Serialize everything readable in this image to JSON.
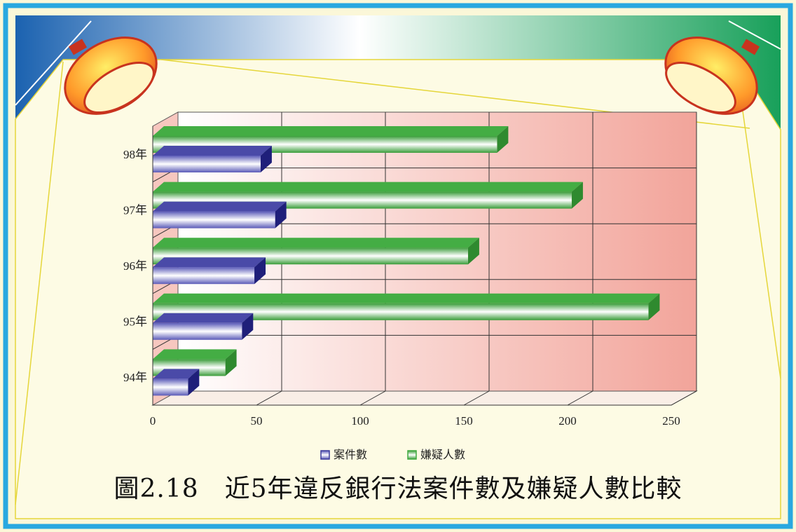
{
  "caption": "圖2.18　近5年違反銀行法案件數及嫌疑人數比較",
  "chart_data": {
    "type": "bar",
    "orientation": "horizontal",
    "three_d": true,
    "categories": [
      "98年",
      "97年",
      "96年",
      "95年",
      "94年"
    ],
    "series": [
      {
        "name": "案件數",
        "values": [
          52,
          59,
          49,
          43,
          17
        ],
        "color": "#3a3a9c"
      },
      {
        "name": "嫌疑人數",
        "values": [
          166,
          202,
          152,
          239,
          35
        ],
        "color": "#3faa3f"
      }
    ],
    "xlim": [
      0,
      250
    ],
    "xticks": [
      "0",
      "50",
      "100",
      "150",
      "200",
      "250"
    ],
    "grid": true,
    "legend_position": "bottom"
  }
}
